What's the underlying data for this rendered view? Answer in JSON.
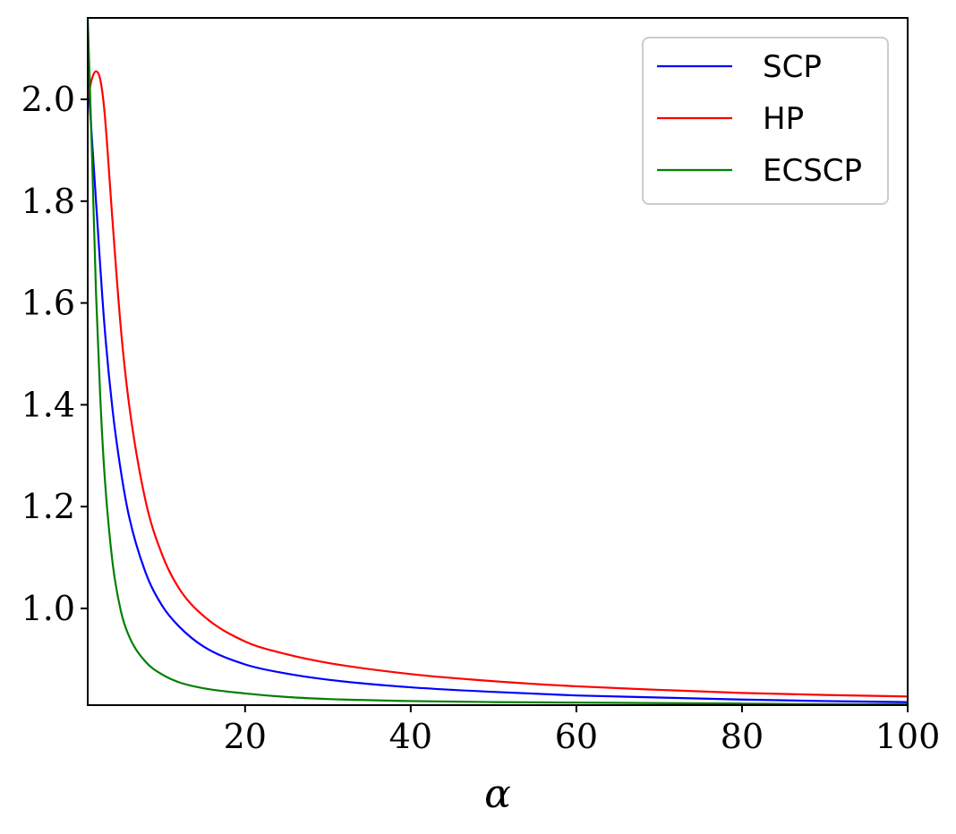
{
  "chart_data": {
    "type": "line",
    "title": "",
    "xlabel": "α",
    "ylabel": "",
    "xlim": [
      1,
      100
    ],
    "ylim": [
      0.81,
      2.16
    ],
    "x_ticks": [
      {
        "value": 20,
        "label": "20"
      },
      {
        "value": 40,
        "label": "40"
      },
      {
        "value": 60,
        "label": "60"
      },
      {
        "value": 80,
        "label": "80"
      },
      {
        "value": 100,
        "label": "100"
      }
    ],
    "y_ticks": [
      {
        "value": 1.0,
        "label": "1.0"
      },
      {
        "value": 1.2,
        "label": "1.2"
      },
      {
        "value": 1.4,
        "label": "1.4"
      },
      {
        "value": 1.6,
        "label": "1.6"
      },
      {
        "value": 1.8,
        "label": "1.8"
      },
      {
        "value": 2.0,
        "label": "2.0"
      }
    ],
    "grid": false,
    "legend_position": "top-right",
    "series": [
      {
        "name": "SCP",
        "color": "#0000ff",
        "x": [
          1,
          2,
          3,
          4,
          5,
          6,
          8,
          10,
          12,
          15,
          20,
          25,
          30,
          40,
          50,
          60,
          70,
          80,
          90,
          100
        ],
        "y": [
          2.05,
          1.8,
          1.56,
          1.39,
          1.27,
          1.18,
          1.07,
          1.005,
          0.965,
          0.925,
          0.89,
          0.872,
          0.86,
          0.845,
          0.836,
          0.829,
          0.825,
          0.821,
          0.818,
          0.816
        ]
      },
      {
        "name": "HP",
        "color": "#ff0000",
        "x": [
          1,
          1.5,
          2,
          2.5,
          3,
          4,
          5,
          6,
          8,
          10,
          12,
          15,
          20,
          25,
          30,
          40,
          50,
          60,
          70,
          80,
          90,
          100
        ],
        "y": [
          2.0,
          2.04,
          2.055,
          2.04,
          1.98,
          1.76,
          1.55,
          1.4,
          1.21,
          1.105,
          1.04,
          0.985,
          0.935,
          0.91,
          0.893,
          0.871,
          0.857,
          0.847,
          0.84,
          0.834,
          0.83,
          0.827
        ]
      },
      {
        "name": "ECSCP",
        "color": "#008000",
        "x": [
          1,
          1.5,
          2,
          2.5,
          3,
          4,
          5,
          6,
          8,
          10,
          12,
          15,
          20,
          25,
          30,
          40,
          50,
          60,
          70,
          80,
          90,
          100
        ],
        "y": [
          2.16,
          1.9,
          1.62,
          1.42,
          1.27,
          1.09,
          0.995,
          0.945,
          0.895,
          0.87,
          0.855,
          0.843,
          0.833,
          0.826,
          0.822,
          0.818,
          0.816,
          0.815,
          0.814,
          0.813,
          0.812,
          0.812
        ]
      }
    ]
  }
}
